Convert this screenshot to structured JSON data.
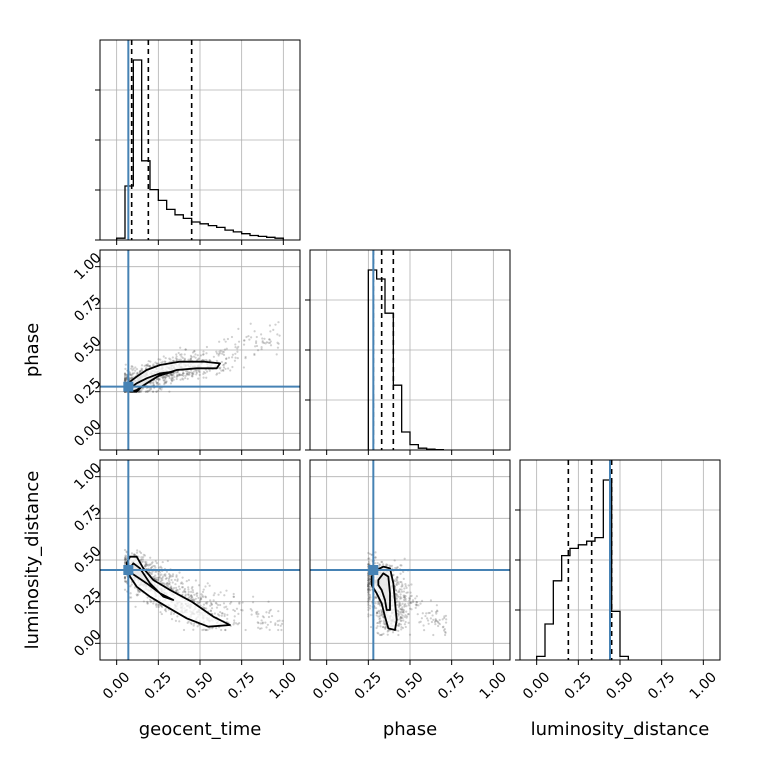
{
  "chart_data": {
    "type": "corner",
    "parameters": [
      "geocent_time",
      "phase",
      "luminosity_distance"
    ],
    "axis_labels": {
      "x": [
        "geocent_time",
        "phase",
        "luminosity_distance"
      ],
      "y": [
        "phase",
        "luminosity_distance"
      ]
    },
    "xlim": [
      -0.1,
      1.1
    ],
    "ylim": [
      -0.1,
      1.1
    ],
    "tick_values": [
      0.0,
      0.25,
      0.5,
      0.75,
      1.0
    ],
    "tick_labels": [
      "0.00",
      "0.25",
      "0.50",
      "0.75",
      "1.00"
    ],
    "grid": true,
    "colors": {
      "truth": "#4682b4",
      "hist": "#000000",
      "contour": "#000000",
      "points": "#555555",
      "grid": "#b0b0b0"
    },
    "truths": {
      "geocent_time": 0.07,
      "phase": 0.28,
      "luminosity_distance": 0.44
    },
    "quantiles": {
      "geocent_time": [
        0.09,
        0.19,
        0.45
      ],
      "phase": [
        0.28,
        0.33,
        0.4
      ],
      "luminosity_distance": [
        0.19,
        0.33,
        0.45
      ]
    },
    "histograms": {
      "geocent_time": {
        "bin_edges": [
          0.0,
          0.05,
          0.1,
          0.15,
          0.2,
          0.25,
          0.3,
          0.35,
          0.4,
          0.45,
          0.5,
          0.55,
          0.6,
          0.65,
          0.7,
          0.75,
          0.8,
          0.85,
          0.9,
          0.95,
          1.0
        ],
        "counts": [
          0.01,
          0.3,
          1.0,
          0.44,
          0.28,
          0.22,
          0.17,
          0.14,
          0.12,
          0.1,
          0.09,
          0.08,
          0.07,
          0.055,
          0.045,
          0.035,
          0.025,
          0.02,
          0.015,
          0.01
        ]
      },
      "phase": {
        "bin_edges": [
          0.25,
          0.3,
          0.35,
          0.4,
          0.45,
          0.5,
          0.55,
          0.6,
          0.65,
          0.7
        ],
        "counts": [
          1.0,
          0.95,
          0.76,
          0.36,
          0.1,
          0.03,
          0.01,
          0.005,
          0.002
        ]
      },
      "luminosity_distance": {
        "bin_edges": [
          0.0,
          0.05,
          0.1,
          0.15,
          0.2,
          0.25,
          0.3,
          0.35,
          0.4,
          0.45,
          0.5,
          0.55
        ],
        "counts": [
          0.02,
          0.2,
          0.44,
          0.58,
          0.62,
          0.64,
          0.66,
          0.68,
          1.0,
          0.27,
          0.02
        ]
      }
    },
    "panels": [
      {
        "x": "geocent_time",
        "y": "phase",
        "contours": [
          [
            [
              0.06,
              0.29
            ],
            [
              0.08,
              0.31
            ],
            [
              0.12,
              0.34
            ],
            [
              0.18,
              0.38
            ],
            [
              0.26,
              0.41
            ],
            [
              0.38,
              0.43
            ],
            [
              0.52,
              0.43
            ],
            [
              0.62,
              0.42
            ],
            [
              0.6,
              0.39
            ],
            [
              0.48,
              0.39
            ],
            [
              0.36,
              0.38
            ],
            [
              0.24,
              0.34
            ],
            [
              0.16,
              0.29
            ],
            [
              0.12,
              0.25
            ],
            [
              0.08,
              0.25
            ],
            [
              0.06,
              0.27
            ]
          ],
          [
            [
              0.08,
              0.27
            ],
            [
              0.12,
              0.3
            ],
            [
              0.18,
              0.33
            ],
            [
              0.26,
              0.36
            ],
            [
              0.34,
              0.37
            ],
            [
              0.26,
              0.35
            ],
            [
              0.18,
              0.3
            ],
            [
              0.12,
              0.26
            ],
            [
              0.09,
              0.25
            ]
          ]
        ],
        "scatter_ranges": {
          "x": [
            0.05,
            0.98
          ],
          "y": [
            0.25,
            0.68
          ]
        }
      },
      {
        "x": "geocent_time",
        "y": "luminosity_distance",
        "contours": [
          [
            [
              0.06,
              0.48
            ],
            [
              0.08,
              0.52
            ],
            [
              0.12,
              0.52
            ],
            [
              0.16,
              0.45
            ],
            [
              0.22,
              0.38
            ],
            [
              0.32,
              0.32
            ],
            [
              0.45,
              0.25
            ],
            [
              0.58,
              0.16
            ],
            [
              0.68,
              0.11
            ],
            [
              0.55,
              0.1
            ],
            [
              0.42,
              0.15
            ],
            [
              0.3,
              0.22
            ],
            [
              0.2,
              0.28
            ],
            [
              0.12,
              0.34
            ],
            [
              0.08,
              0.4
            ]
          ],
          [
            [
              0.08,
              0.45
            ],
            [
              0.1,
              0.48
            ],
            [
              0.14,
              0.45
            ],
            [
              0.2,
              0.36
            ],
            [
              0.28,
              0.28
            ],
            [
              0.34,
              0.26
            ],
            [
              0.26,
              0.3
            ],
            [
              0.18,
              0.36
            ],
            [
              0.12,
              0.4
            ],
            [
              0.09,
              0.42
            ]
          ]
        ],
        "scatter_ranges": {
          "x": [
            0.05,
            1.0
          ],
          "y": [
            0.08,
            0.56
          ]
        }
      },
      {
        "x": "phase",
        "y": "luminosity_distance",
        "contours": [
          [
            [
              0.27,
              0.4
            ],
            [
              0.3,
              0.44
            ],
            [
              0.34,
              0.46
            ],
            [
              0.38,
              0.45
            ],
            [
              0.4,
              0.36
            ],
            [
              0.41,
              0.25
            ],
            [
              0.42,
              0.14
            ],
            [
              0.41,
              0.08
            ],
            [
              0.37,
              0.09
            ],
            [
              0.35,
              0.16
            ],
            [
              0.33,
              0.24
            ],
            [
              0.3,
              0.3
            ],
            [
              0.27,
              0.35
            ]
          ],
          [
            [
              0.31,
              0.38
            ],
            [
              0.34,
              0.42
            ],
            [
              0.37,
              0.4
            ],
            [
              0.38,
              0.3
            ],
            [
              0.38,
              0.2
            ],
            [
              0.36,
              0.2
            ],
            [
              0.35,
              0.26
            ],
            [
              0.33,
              0.32
            ],
            [
              0.31,
              0.35
            ]
          ]
        ],
        "scatter_ranges": {
          "x": [
            0.25,
            0.72
          ],
          "y": [
            0.05,
            0.56
          ]
        }
      }
    ]
  }
}
